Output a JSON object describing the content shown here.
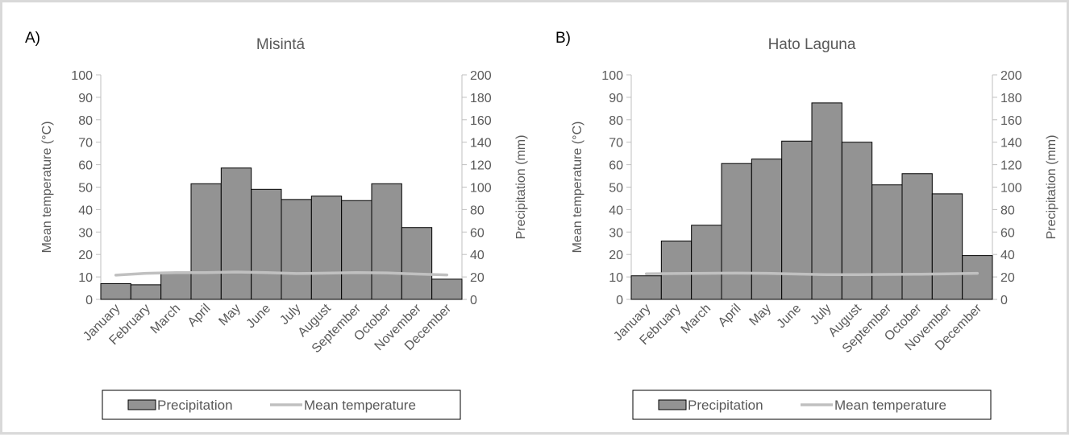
{
  "chart_data": [
    {
      "type": "bar",
      "panel_label": "A)",
      "title": "Misintá",
      "categories": [
        "January",
        "February",
        "March",
        "April",
        "May",
        "June",
        "July",
        "August",
        "September",
        "October",
        "November",
        "December"
      ],
      "series": [
        {
          "name": "Precipitation",
          "axis": "right",
          "values": [
            14,
            13,
            24,
            103,
            117,
            98,
            89,
            92,
            88,
            103,
            64,
            18
          ],
          "color": "#939393"
        },
        {
          "name": "Mean temperature",
          "axis": "left",
          "values": [
            10.8,
            11.6,
            11.9,
            11.9,
            12.2,
            11.9,
            11.5,
            11.7,
            11.9,
            11.8,
            11.3,
            10.9
          ],
          "color": "#c0c0c0"
        }
      ],
      "ylabel": "Mean temperature (°C)",
      "y2label": "Precipitation (mm)",
      "ylim": [
        0,
        100
      ],
      "y2lim": [
        0,
        200
      ],
      "yticks": [
        "0",
        "10",
        "20",
        "30",
        "40",
        "50",
        "60",
        "70",
        "80",
        "90",
        "100"
      ],
      "y2ticks": [
        "0",
        "20",
        "40",
        "60",
        "80",
        "100",
        "120",
        "140",
        "160",
        "180",
        "200"
      ],
      "legend": {
        "position": "bottom",
        "items": [
          "Precipitation",
          "Mean temperature"
        ]
      }
    },
    {
      "type": "bar",
      "panel_label": "B)",
      "title": "Hato Laguna",
      "categories": [
        "January",
        "February",
        "March",
        "April",
        "May",
        "June",
        "July",
        "August",
        "September",
        "October",
        "November",
        "December"
      ],
      "series": [
        {
          "name": "Precipitation",
          "axis": "right",
          "values": [
            21,
            52,
            66,
            121,
            125,
            141,
            175,
            140,
            102,
            112,
            94,
            39
          ],
          "color": "#939393"
        },
        {
          "name": "Mean temperature",
          "axis": "left",
          "values": [
            11.4,
            11.5,
            11.6,
            11.7,
            11.6,
            11.3,
            11.0,
            11.0,
            11.1,
            11.2,
            11.4,
            11.6
          ],
          "color": "#c0c0c0"
        }
      ],
      "ylabel": "Mean temperature (°C)",
      "y2label": "Precipitation (mm)",
      "ylim": [
        0,
        100
      ],
      "y2lim": [
        0,
        200
      ],
      "yticks": [
        "0",
        "10",
        "20",
        "30",
        "40",
        "50",
        "60",
        "70",
        "80",
        "90",
        "100"
      ],
      "y2ticks": [
        "0",
        "20",
        "40",
        "60",
        "80",
        "100",
        "120",
        "140",
        "160",
        "180",
        "200"
      ],
      "legend": {
        "position": "bottom",
        "items": [
          "Precipitation",
          "Mean temperature"
        ]
      }
    }
  ]
}
